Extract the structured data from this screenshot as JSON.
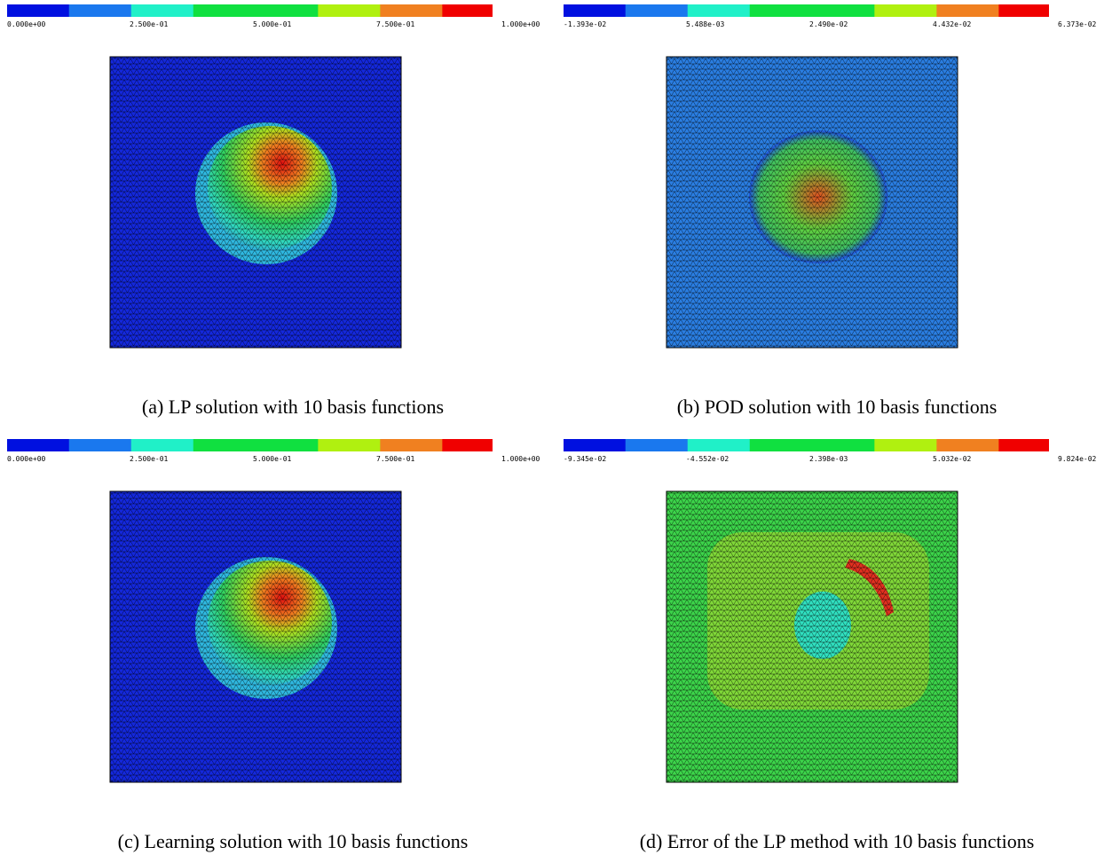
{
  "panels": [
    {
      "colorbar_labels": [
        "0.000e+00",
        "2.500e-01",
        "5.000e-01",
        "7.500e-01",
        "1.000e+00"
      ],
      "caption": "(a) LP solution with 10 basis functions"
    },
    {
      "colorbar_labels": [
        "-1.393e-02",
        "5.488e-03",
        "2.490e-02",
        "4.432e-02",
        "6.373e-02"
      ],
      "caption": "(b) POD solution with 10 basis functions"
    },
    {
      "colorbar_labels": [
        "0.000e+00",
        "2.500e-01",
        "5.000e-01",
        "7.500e-01",
        "1.000e+00"
      ],
      "caption": "(c) Learning solution with 10 basis functions"
    },
    {
      "colorbar_labels": [
        "-9.345e-02",
        "-4.552e-02",
        "2.398e-03",
        "5.032e-02",
        "9.824e-02"
      ],
      "caption": "(d) Error of the LP method with 10 basis functions"
    }
  ]
}
